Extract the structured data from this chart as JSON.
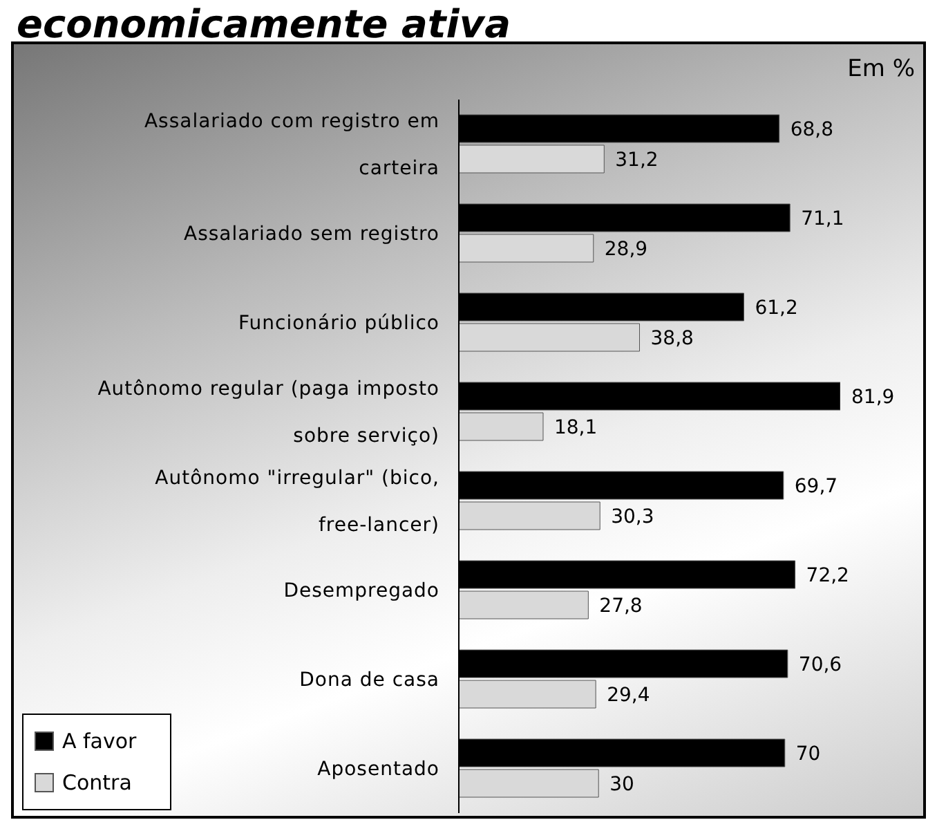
{
  "chart_data": {
    "type": "bar",
    "orientation": "horizontal",
    "title": "economicamente ativa",
    "annotations": [
      "Em %"
    ],
    "categories": [
      "Assalariado com registro em carteira",
      "Assalariado sem registro",
      "Funcionário público",
      "Autônomo regular (paga imposto sobre serviço)",
      "Autônomo \"irregular\" (bico, free-lancer)",
      "Desempregado",
      "Dona de casa",
      "Aposentado"
    ],
    "series": [
      {
        "name": "A favor",
        "color": "#000000",
        "values": [
          68.8,
          71.1,
          61.2,
          81.9,
          69.7,
          72.2,
          70.6,
          70
        ],
        "value_labels": [
          "68,8",
          "71,1",
          "61,2",
          "81,9",
          "69,7",
          "72,2",
          "70,6",
          "70"
        ]
      },
      {
        "name": "Contra",
        "color": "#d9d9d9",
        "values": [
          31.2,
          28.9,
          38.8,
          18.1,
          30.3,
          27.8,
          29.4,
          30
        ],
        "value_labels": [
          "31,2",
          "28,9",
          "38,8",
          "18,1",
          "30,3",
          "27,8",
          "29,4",
          "30"
        ]
      }
    ],
    "tick_labels": "y",
    "legend": "bottom left",
    "grid": false
  }
}
